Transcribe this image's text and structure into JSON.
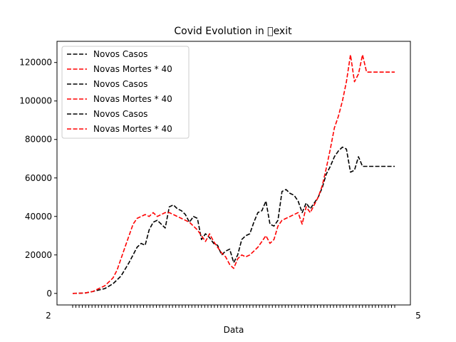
{
  "chart_data": {
    "type": "line",
    "title": "Covid Evolution in \u0000exit",
    "xlabel": "Data",
    "ylabel": "",
    "ylim": [
      -6000,
      131000
    ],
    "yticks": [
      0,
      20000,
      40000,
      60000,
      80000,
      100000,
      120000
    ],
    "ytick_labels": [
      "0",
      "20000",
      "40000",
      "60000",
      "80000",
      "100000",
      "120000"
    ],
    "xtick_labels_visible": [
      "2",
      "5"
    ],
    "x_index_range": [
      0,
      400
    ],
    "legend_position": "upper left",
    "series": [
      {
        "name": "Novos Casos",
        "color": "#000000",
        "style": "dashed",
        "x": [
          0,
          15,
          25,
          30,
          40,
          50,
          55,
          60,
          70,
          80,
          85,
          90,
          95,
          100,
          105,
          110,
          115,
          120,
          125,
          130,
          135,
          140,
          145,
          150,
          155,
          160,
          165,
          170,
          175,
          180,
          185,
          190,
          195,
          200,
          205,
          210,
          215,
          220,
          225,
          230,
          235,
          240,
          245,
          250,
          255,
          260,
          265,
          270,
          275,
          280,
          285,
          290,
          295,
          300,
          305,
          310,
          315,
          320,
          325,
          330,
          335,
          340,
          345,
          350,
          355,
          360,
          365,
          370,
          375,
          380,
          385,
          390,
          395,
          400
        ],
        "values": [
          0,
          200,
          1000,
          1500,
          2500,
          5000,
          7000,
          9000,
          16000,
          24000,
          26000,
          25000,
          33000,
          37000,
          38000,
          36000,
          34000,
          45000,
          46000,
          44000,
          43000,
          41000,
          37000,
          40000,
          39000,
          28000,
          31000,
          29000,
          26000,
          25000,
          20000,
          22000,
          23000,
          16000,
          20000,
          28000,
          30000,
          31000,
          37000,
          42000,
          43000,
          48000,
          36000,
          35000,
          38000,
          53000,
          54000,
          52000,
          51000,
          48000,
          42000,
          47000,
          44000,
          47000,
          50000,
          55000,
          62000,
          66000,
          71000,
          74000,
          76000,
          75000,
          63000,
          64000,
          71000,
          66000,
          66000,
          66000,
          66000,
          66000,
          66000,
          66000,
          66000,
          66000
        ]
      },
      {
        "name": "Novas Mortes * 40",
        "color": "#ff0000",
        "style": "dashed",
        "x": [
          0,
          15,
          25,
          30,
          40,
          50,
          55,
          60,
          65,
          70,
          75,
          80,
          85,
          90,
          95,
          100,
          105,
          110,
          115,
          120,
          125,
          130,
          135,
          140,
          145,
          150,
          155,
          160,
          165,
          170,
          175,
          180,
          185,
          190,
          195,
          200,
          205,
          210,
          215,
          220,
          225,
          230,
          235,
          240,
          245,
          250,
          255,
          260,
          265,
          270,
          275,
          280,
          285,
          290,
          295,
          300,
          305,
          310,
          315,
          320,
          325,
          330,
          335,
          340,
          345,
          350,
          355,
          360,
          365,
          370,
          375,
          380,
          385,
          390,
          395,
          400
        ],
        "values": [
          0,
          200,
          1000,
          2000,
          4000,
          8000,
          12000,
          18000,
          24000,
          30000,
          36000,
          39000,
          40000,
          41000,
          40000,
          42000,
          40000,
          41000,
          42000,
          42000,
          41000,
          40000,
          39000,
          38000,
          37000,
          35000,
          33000,
          30000,
          27000,
          31000,
          27000,
          24000,
          21000,
          19000,
          15000,
          13000,
          18000,
          20000,
          19000,
          20000,
          22000,
          24000,
          27000,
          30000,
          26000,
          28000,
          35000,
          38000,
          39000,
          40000,
          41000,
          42000,
          36000,
          45000,
          42000,
          46000,
          50000,
          56000,
          65000,
          75000,
          86000,
          92000,
          100000,
          110000,
          124000,
          110000,
          114000,
          124000,
          115000,
          115000,
          115000,
          115000,
          115000,
          115000,
          115000,
          115000
        ]
      }
    ],
    "legend_entries": [
      {
        "label": "Novos Casos",
        "color": "#000000"
      },
      {
        "label": "Novas Mortes * 40",
        "color": "#ff0000"
      },
      {
        "label": "Novos Casos",
        "color": "#000000"
      },
      {
        "label": "Novas Mortes * 40",
        "color": "#ff0000"
      },
      {
        "label": "Novos Casos",
        "color": "#000000"
      },
      {
        "label": "Novas Mortes * 40",
        "color": "#ff0000"
      }
    ]
  }
}
